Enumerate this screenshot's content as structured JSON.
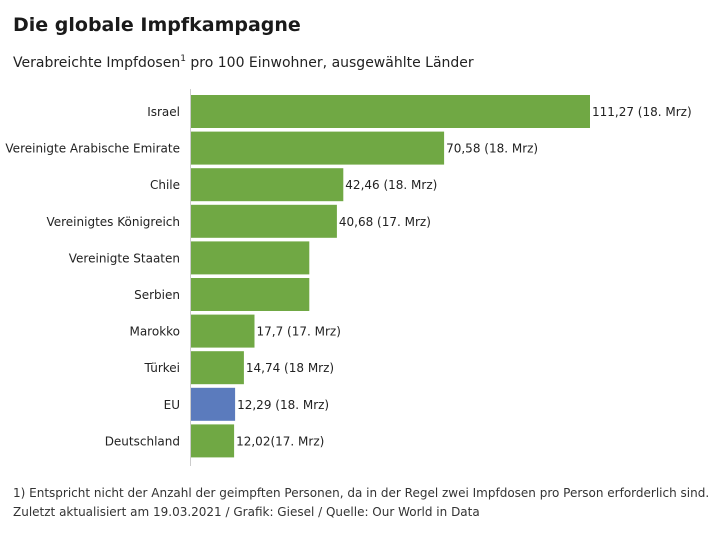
{
  "title": "Die globale Impfkampagne",
  "subtitle": {
    "text_before": "Verabreichte Impfdosen",
    "marker": "1",
    "text_after": " pro 100 Einwohner, ausgewählte Länder"
  },
  "chart_data": {
    "type": "bar",
    "orientation": "horizontal",
    "categories": [
      "Israel",
      "Vereinigte Arabische Emirate",
      "Chile",
      "Vereinigtes Königreich",
      "Vereinigte Staaten",
      "Serbien",
      "Marokko",
      "Türkei",
      "EU",
      "Deutschland"
    ],
    "values": [
      111.27,
      70.58,
      42.46,
      40.68,
      33,
      33,
      17.7,
      14.74,
      12.29,
      12.02
    ],
    "value_labels": [
      "111,27 (18. Mrz)",
      "70,58 (18. Mrz)",
      "42,46 (18. Mrz)",
      "40,68 (17. Mrz)",
      "",
      "",
      "17,7 (17. Mrz)",
      "14,74 (18 Mrz)",
      "12,29 (18. Mrz)",
      "12,02(17. Mrz)"
    ],
    "colors": [
      "#70a844",
      "#70a844",
      "#70a844",
      "#70a844",
      "#70a844",
      "#70a844",
      "#70a844",
      "#70a844",
      "#5b7bbd",
      "#70a844"
    ],
    "xlim": [
      0,
      111.27
    ],
    "grid": false,
    "legend": "none"
  },
  "footnotes": [
    "1) Entspricht nicht der Anzahl der geimpften Personen, da in der Regel zwei Impfdosen pro Person erforderlich sind.",
    "Zuletzt aktualisiert am 19.03.2021 / Grafik: Giesel / Quelle: Our World in Data"
  ]
}
